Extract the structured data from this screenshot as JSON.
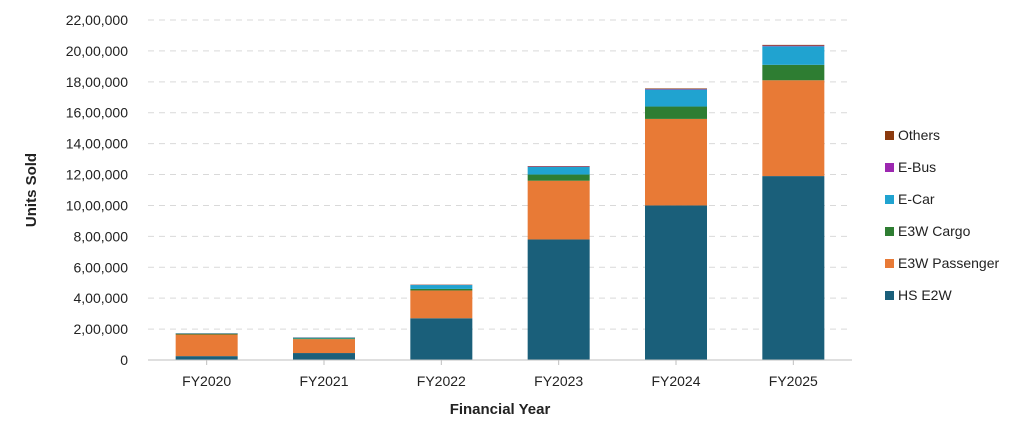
{
  "chart_data": {
    "type": "bar",
    "stacked": true,
    "xlabel": "Financial Year",
    "ylabel": "Units Sold",
    "ylim": [
      0,
      2200000
    ],
    "yticks": [
      0,
      200000,
      400000,
      600000,
      800000,
      1000000,
      1200000,
      1400000,
      1600000,
      1800000,
      2000000,
      2200000
    ],
    "ytick_labels": [
      "0",
      "2,00,000",
      "4,00,000",
      "6,00,000",
      "8,00,000",
      "10,00,000",
      "12,00,000",
      "14,00,000",
      "16,00,000",
      "18,00,000",
      "20,00,000",
      "22,00,000"
    ],
    "categories": [
      "FY2020",
      "FY2021",
      "FY2022",
      "FY2023",
      "FY2024",
      "FY2025"
    ],
    "grid": true,
    "legend_position": "right",
    "series": [
      {
        "name": "HS E2W",
        "color": "#1a5f7a",
        "values": [
          25000,
          45000,
          270000,
          780000,
          1000000,
          1190000
        ]
      },
      {
        "name": "E3W Passenger",
        "color": "#e87a36",
        "values": [
          140000,
          90000,
          180000,
          380000,
          560000,
          620000
        ]
      },
      {
        "name": "E3W Cargo",
        "color": "#2e7d32",
        "values": [
          5000,
          5000,
          10000,
          40000,
          80000,
          100000
        ]
      },
      {
        "name": "E-Car",
        "color": "#20a3d0",
        "values": [
          3000,
          5000,
          25000,
          50000,
          110000,
          120000
        ]
      },
      {
        "name": "E-Bus",
        "color": "#9c27b0",
        "values": [
          500,
          500,
          1000,
          2000,
          3000,
          4000
        ]
      },
      {
        "name": "Others",
        "color": "#8b3a0e",
        "values": [
          1000,
          1000,
          2000,
          3000,
          4000,
          5000
        ]
      }
    ],
    "legend_order": [
      "Others",
      "E-Bus",
      "E-Car",
      "E3W Cargo",
      "E3W Passenger",
      "HS E2W"
    ]
  }
}
